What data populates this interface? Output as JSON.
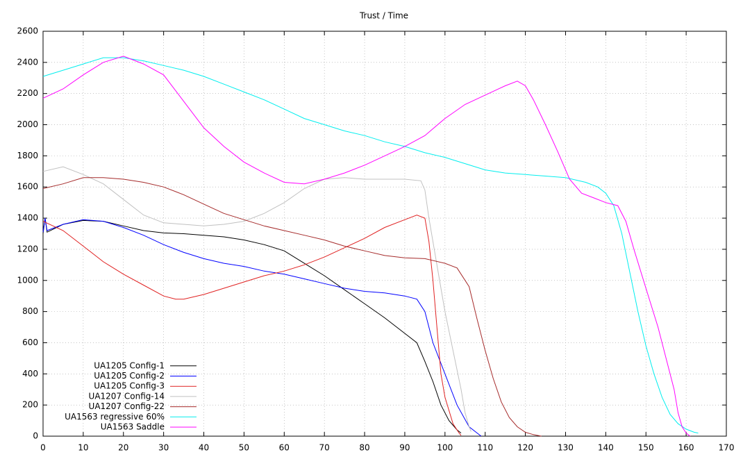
{
  "chart_data": {
    "type": "line",
    "title": "Trust / Time",
    "xlim": [
      0,
      170
    ],
    "xticks": [
      0,
      10,
      20,
      30,
      40,
      50,
      60,
      70,
      80,
      90,
      100,
      110,
      120,
      130,
      140,
      150,
      160,
      170
    ],
    "ylim": [
      0,
      2600
    ],
    "yticks": [
      0,
      200,
      400,
      600,
      800,
      1000,
      1200,
      1400,
      1600,
      1800,
      2000,
      2200,
      2400,
      2600
    ],
    "grid": true,
    "legend": "bottom left",
    "series": [
      {
        "name": "UA1205 Config-1",
        "color": "#000000",
        "x": [
          0,
          0.5,
          1,
          5,
          10,
          15,
          20,
          25,
          30,
          35,
          40,
          45,
          50,
          55,
          60,
          65,
          70,
          75,
          80,
          85,
          90,
          93,
          95,
          97,
          99,
          101,
          103,
          104
        ],
        "values": [
          1300,
          1400,
          1310,
          1360,
          1385,
          1380,
          1350,
          1320,
          1305,
          1300,
          1290,
          1280,
          1260,
          1230,
          1190,
          1110,
          1030,
          940,
          850,
          760,
          660,
          600,
          480,
          350,
          200,
          100,
          40,
          20
        ]
      },
      {
        "name": "UA1205 Config-2",
        "color": "#0000ff",
        "x": [
          0,
          0.5,
          1,
          5,
          10,
          15,
          20,
          25,
          30,
          35,
          40,
          45,
          50,
          55,
          60,
          65,
          70,
          75,
          80,
          85,
          90,
          93,
          95,
          97,
          100,
          103,
          106,
          109
        ],
        "values": [
          1310,
          1400,
          1320,
          1360,
          1390,
          1380,
          1340,
          1290,
          1230,
          1180,
          1140,
          1110,
          1090,
          1060,
          1040,
          1010,
          980,
          950,
          930,
          920,
          900,
          880,
          800,
          600,
          400,
          200,
          60,
          0
        ]
      },
      {
        "name": "UA1205 Config-3",
        "color": "#e02020",
        "x": [
          0,
          5,
          10,
          15,
          20,
          25,
          30,
          33,
          35,
          40,
          45,
          50,
          55,
          60,
          65,
          70,
          75,
          80,
          85,
          90,
          93,
          95,
          96,
          97,
          98,
          99,
          100,
          102,
          103.5,
          104
        ],
        "values": [
          1380,
          1320,
          1220,
          1120,
          1040,
          970,
          900,
          880,
          880,
          910,
          950,
          990,
          1030,
          1060,
          1100,
          1150,
          1210,
          1270,
          1340,
          1390,
          1420,
          1400,
          1250,
          1000,
          700,
          400,
          250,
          80,
          20,
          5
        ]
      },
      {
        "name": "UA1207 Config-14",
        "color": "#c0c0c0",
        "x": [
          0,
          5,
          10,
          15,
          20,
          25,
          30,
          35,
          40,
          45,
          50,
          55,
          60,
          65,
          70,
          75,
          80,
          85,
          90,
          94,
          95,
          96,
          98,
          100,
          102,
          104,
          105,
          106,
          106.5
        ],
        "values": [
          1700,
          1730,
          1680,
          1620,
          1520,
          1420,
          1370,
          1360,
          1350,
          1360,
          1380,
          1430,
          1500,
          1590,
          1650,
          1660,
          1650,
          1650,
          1650,
          1640,
          1580,
          1400,
          1100,
          800,
          550,
          300,
          150,
          60,
          30
        ]
      },
      {
        "name": "UA1207 Config-22",
        "color": "#a52a2a",
        "x": [
          0,
          5,
          10,
          15,
          20,
          25,
          30,
          35,
          40,
          45,
          50,
          55,
          60,
          65,
          70,
          75,
          80,
          85,
          90,
          95,
          100,
          103,
          106,
          108,
          110,
          112,
          114,
          116,
          118,
          120,
          122,
          124
        ],
        "values": [
          1590,
          1620,
          1660,
          1660,
          1650,
          1630,
          1600,
          1550,
          1490,
          1430,
          1390,
          1350,
          1320,
          1290,
          1260,
          1220,
          1190,
          1160,
          1145,
          1140,
          1110,
          1080,
          960,
          750,
          550,
          370,
          220,
          120,
          60,
          25,
          10,
          0
        ]
      },
      {
        "name": "UA1563 regressive 60%",
        "color": "#00eeee",
        "x": [
          0,
          5,
          10,
          15,
          20,
          25,
          30,
          35,
          40,
          45,
          50,
          55,
          60,
          65,
          70,
          75,
          80,
          85,
          90,
          95,
          100,
          105,
          110,
          115,
          120,
          125,
          130,
          135,
          138,
          140,
          142,
          144,
          146,
          148,
          150,
          152,
          154,
          156,
          158,
          160,
          162,
          163
        ],
        "values": [
          2310,
          2350,
          2390,
          2430,
          2430,
          2410,
          2380,
          2350,
          2310,
          2260,
          2210,
          2160,
          2100,
          2040,
          2000,
          1960,
          1930,
          1890,
          1860,
          1820,
          1790,
          1750,
          1710,
          1690,
          1680,
          1670,
          1660,
          1630,
          1600,
          1560,
          1480,
          1300,
          1050,
          800,
          580,
          400,
          250,
          140,
          80,
          45,
          25,
          20
        ]
      },
      {
        "name": "UA1563 Saddle",
        "color": "#ff00ff",
        "x": [
          0,
          5,
          10,
          15,
          20,
          25,
          30,
          35,
          40,
          45,
          50,
          55,
          60,
          65,
          70,
          75,
          80,
          85,
          90,
          95,
          100,
          105,
          110,
          115,
          118,
          120,
          122,
          125,
          128,
          131,
          134,
          137,
          140,
          143,
          145,
          147,
          150,
          153,
          155,
          157,
          158,
          159,
          160,
          161
        ],
        "values": [
          2170,
          2230,
          2320,
          2400,
          2440,
          2390,
          2320,
          2150,
          1980,
          1860,
          1760,
          1690,
          1630,
          1620,
          1650,
          1690,
          1740,
          1800,
          1860,
          1930,
          2040,
          2130,
          2190,
          2250,
          2280,
          2250,
          2160,
          2000,
          1830,
          1650,
          1560,
          1530,
          1500,
          1480,
          1380,
          1200,
          950,
          700,
          500,
          300,
          150,
          60,
          20,
          0
        ]
      }
    ]
  }
}
